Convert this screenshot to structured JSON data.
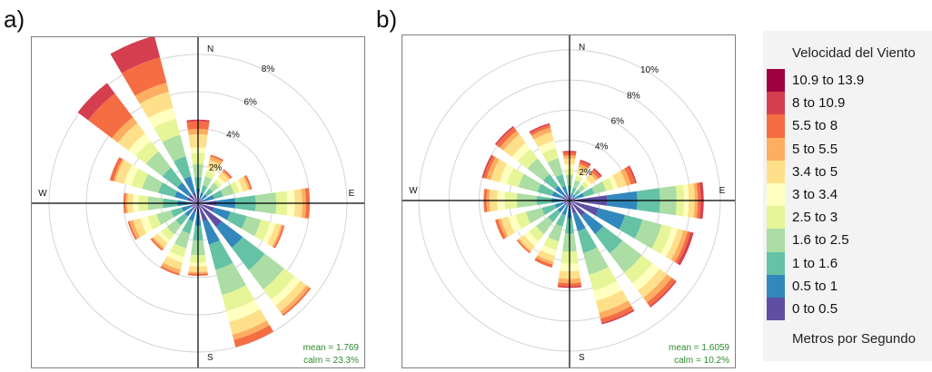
{
  "panels": [
    {
      "label": "a)",
      "mean_text": "mean = 1.769",
      "calm_text": "calm = 23.3%"
    },
    {
      "label": "b)",
      "mean_text": "mean = 1.6059",
      "calm_text": "calm = 10.2%"
    }
  ],
  "legend": {
    "title": "Velocidad del Viento",
    "footer": "Metros por Segundo",
    "items": [
      {
        "label": "10.9 to 13.9",
        "color": "#9e0142"
      },
      {
        "label": "8 to 10.9",
        "color": "#d53e4f"
      },
      {
        "label": "5.5 to 8",
        "color": "#f46d43"
      },
      {
        "label": "5 to 5.5",
        "color": "#fdae61"
      },
      {
        "label": "3.4 to 5",
        "color": "#fee08b"
      },
      {
        "label": "3 to 3.4",
        "color": "#ffffbf"
      },
      {
        "label": "2.5 to 3",
        "color": "#e6f598"
      },
      {
        "label": "1.6 to 2.5",
        "color": "#abdda4"
      },
      {
        "label": "1 to 1.6",
        "color": "#66c2a5"
      },
      {
        "label": "0.5 to 1",
        "color": "#3288bd"
      },
      {
        "label": "0 to 0.5",
        "color": "#5e4fa2"
      }
    ]
  },
  "chart_data": [
    {
      "type": "wind-rose",
      "title": "a)",
      "directions": [
        "N",
        "NNE",
        "NE",
        "ENE",
        "E",
        "ESE",
        "SE",
        "SSE",
        "S",
        "SSW",
        "SW",
        "WSW",
        "W",
        "WNW",
        "NW",
        "NNW"
      ],
      "directions_deg": [
        0,
        22.5,
        45,
        67.5,
        90,
        112.5,
        135,
        157.5,
        180,
        202.5,
        225,
        247.5,
        270,
        292.5,
        315,
        337.5
      ],
      "compass_labels": [
        "N",
        "E",
        "S",
        "W"
      ],
      "radial_unit": "%",
      "radial_ticks": [
        2,
        4,
        6,
        8
      ],
      "radial_tick_labels": [
        "2%",
        "4%",
        "6%",
        "8%"
      ],
      "speed_bins": [
        "0 to 0.5",
        "0.5 to 1",
        "1 to 1.6",
        "1.6 to 2.5",
        "2.5 to 3",
        "3 to 3.4",
        "3.4 to 5",
        "5 to 5.5",
        "5.5 to 8",
        "8 to 10.9",
        "10.9 to 13.9"
      ],
      "cumulative_frequency_pct": [
        [
          0.4,
          0.8,
          1.4,
          2.1,
          2.7,
          3.0,
          3.7,
          4.0,
          4.4,
          4.5,
          4.5
        ],
        [
          0.3,
          0.6,
          1.0,
          1.5,
          1.8,
          2.0,
          2.4,
          2.6,
          2.7,
          2.7,
          2.7
        ],
        [
          0.3,
          0.6,
          1.0,
          1.4,
          1.6,
          1.8,
          2.1,
          2.2,
          2.3,
          2.3,
          2.3
        ],
        [
          0.4,
          0.9,
          1.4,
          2.0,
          2.3,
          2.5,
          2.8,
          2.9,
          3.0,
          3.0,
          3.0
        ],
        [
          1.0,
          2.0,
          3.1,
          4.2,
          4.8,
          5.2,
          5.6,
          5.8,
          6.0,
          6.0,
          6.0
        ],
        [
          0.9,
          1.8,
          2.7,
          3.5,
          4.0,
          4.3,
          4.6,
          4.7,
          4.8,
          4.8,
          4.8
        ],
        [
          1.6,
          3.0,
          4.5,
          5.8,
          6.5,
          6.9,
          7.3,
          7.5,
          7.6,
          7.6,
          7.6
        ],
        [
          1.0,
          2.3,
          3.7,
          5.1,
          6.0,
          6.6,
          7.3,
          7.6,
          8.0,
          8.0,
          8.0
        ],
        [
          0.6,
          1.2,
          2.0,
          2.8,
          3.2,
          3.4,
          3.7,
          3.8,
          3.9,
          3.9,
          3.9
        ],
        [
          0.5,
          1.0,
          1.7,
          2.5,
          3.0,
          3.3,
          3.7,
          3.9,
          4.0,
          4.0,
          4.0
        ],
        [
          0.4,
          0.9,
          1.5,
          2.1,
          2.5,
          2.7,
          3.0,
          3.1,
          3.2,
          3.2,
          3.2
        ],
        [
          0.4,
          0.9,
          1.5,
          2.3,
          2.8,
          3.2,
          3.6,
          3.8,
          3.9,
          3.9,
          3.9
        ],
        [
          0.5,
          1.1,
          1.9,
          2.7,
          3.2,
          3.5,
          3.8,
          3.9,
          4.0,
          4.0,
          4.0
        ],
        [
          0.6,
          1.3,
          2.2,
          3.1,
          3.7,
          4.1,
          4.6,
          4.7,
          4.9,
          4.9,
          4.9
        ],
        [
          0.6,
          1.4,
          2.4,
          3.5,
          4.2,
          4.7,
          5.4,
          5.8,
          7.4,
          8.1,
          8.1
        ],
        [
          0.6,
          1.5,
          2.6,
          3.8,
          4.7,
          5.3,
          6.2,
          6.7,
          8.1,
          9.3,
          9.3
        ]
      ],
      "mean_speed": 1.769,
      "calm_pct": 23.3
    },
    {
      "type": "wind-rose",
      "title": "b)",
      "directions": [
        "N",
        "NNE",
        "NE",
        "ENE",
        "E",
        "ESE",
        "SE",
        "SSE",
        "S",
        "SSW",
        "SW",
        "WSW",
        "W",
        "WNW",
        "NW",
        "NNW"
      ],
      "directions_deg": [
        0,
        22.5,
        45,
        67.5,
        90,
        112.5,
        135,
        157.5,
        180,
        202.5,
        225,
        247.5,
        270,
        292.5,
        315,
        337.5
      ],
      "compass_labels": [
        "N",
        "E",
        "S",
        "W"
      ],
      "radial_unit": "%",
      "radial_ticks": [
        2,
        4,
        6,
        8,
        10
      ],
      "radial_tick_labels": [
        "2%",
        "4%",
        "6%",
        "8%",
        "10%"
      ],
      "speed_bins": [
        "0 to 0.5",
        "0.5 to 1",
        "1 to 1.6",
        "1.6 to 2.5",
        "2.5 to 3",
        "3 to 3.4",
        "3.4 to 5",
        "5 to 5.5",
        "5.5 to 8",
        "8 to 10.9",
        "10.9 to 13.9"
      ],
      "cumulative_frequency_pct": [
        [
          0.2,
          0.5,
          1.0,
          1.7,
          2.1,
          2.4,
          2.8,
          3.0,
          3.2,
          3.3,
          3.3
        ],
        [
          0.2,
          0.5,
          0.9,
          1.4,
          1.7,
          1.9,
          2.3,
          2.5,
          2.7,
          2.8,
          2.8
        ],
        [
          0.2,
          0.5,
          0.9,
          1.3,
          1.6,
          1.8,
          2.2,
          2.4,
          2.6,
          2.7,
          2.7
        ],
        [
          0.4,
          1.0,
          1.7,
          2.5,
          3.0,
          3.3,
          3.9,
          4.2,
          4.5,
          4.6,
          4.6
        ],
        [
          2.5,
          4.5,
          6.0,
          7.1,
          7.6,
          7.9,
          8.3,
          8.5,
          8.7,
          8.9,
          8.9
        ],
        [
          2.0,
          3.8,
          5.0,
          6.3,
          7.0,
          7.4,
          7.8,
          8.1,
          8.3,
          8.5,
          8.5
        ],
        [
          1.3,
          2.8,
          4.4,
          6.0,
          6.9,
          7.5,
          8.1,
          8.5,
          8.8,
          8.9,
          8.9
        ],
        [
          0.9,
          2.1,
          3.6,
          5.1,
          6.2,
          6.9,
          7.7,
          8.1,
          8.4,
          8.5,
          8.5
        ],
        [
          0.5,
          1.2,
          2.2,
          3.4,
          4.2,
          4.7,
          5.2,
          5.5,
          5.7,
          5.8,
          5.8
        ],
        [
          0.4,
          1.0,
          1.8,
          2.8,
          3.4,
          3.8,
          4.2,
          4.4,
          4.6,
          4.6,
          4.6
        ],
        [
          0.4,
          1.0,
          1.8,
          2.8,
          3.4,
          3.8,
          4.2,
          4.3,
          4.4,
          4.4,
          4.4
        ],
        [
          0.4,
          1.0,
          1.9,
          3.0,
          3.7,
          4.2,
          4.7,
          4.9,
          5.1,
          5.1,
          5.1
        ],
        [
          0.5,
          1.2,
          2.2,
          3.5,
          4.3,
          4.8,
          5.3,
          5.5,
          5.7,
          5.7,
          5.7
        ],
        [
          0.5,
          1.2,
          2.2,
          3.5,
          4.3,
          4.8,
          5.4,
          5.7,
          5.9,
          6.0,
          6.0
        ],
        [
          0.5,
          1.2,
          2.2,
          3.5,
          4.3,
          4.8,
          5.5,
          5.8,
          6.1,
          6.2,
          6.2
        ],
        [
          0.4,
          1.0,
          1.8,
          2.9,
          3.6,
          4.1,
          4.7,
          5.0,
          5.2,
          5.3,
          5.3
        ]
      ],
      "mean_speed": 1.6059,
      "calm_pct": 10.2
    }
  ]
}
